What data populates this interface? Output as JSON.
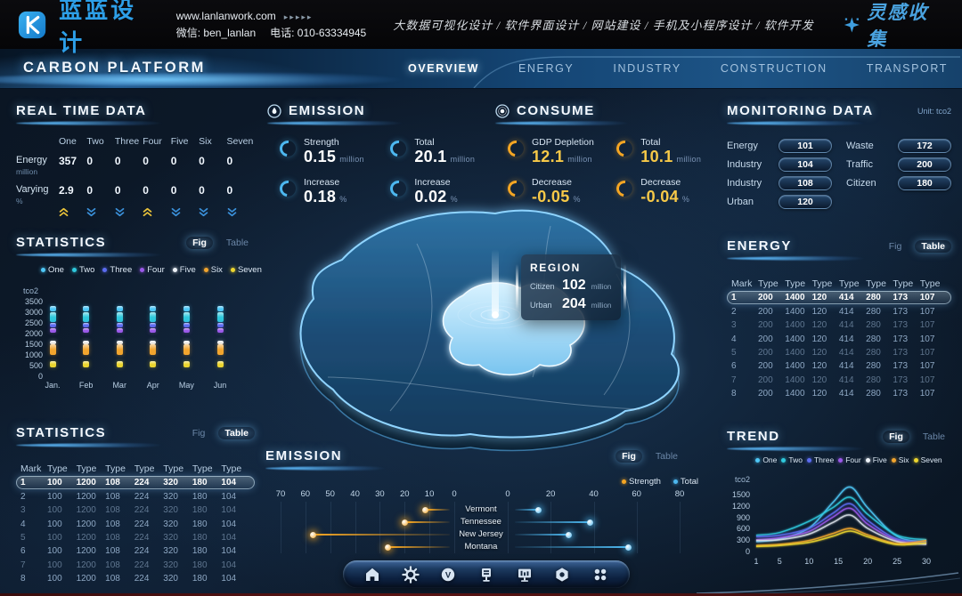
{
  "site_header": {
    "logo_text": "蓝蓝设计",
    "url": "www.lanlanwork.com",
    "url_arrows": "▸▸▸▸▸",
    "wechat": "微信: ben_lanlan",
    "phone": "电话: 010-63334945",
    "services": "大数据可视化设计 / 软件界面设计 / 网站建设 / 手机及小程序设计 / 软件开发",
    "collect": "灵感收集"
  },
  "navbar": {
    "title": "CARBON PLATFORM",
    "tabs": [
      {
        "label": "OVERVIEW",
        "active": true
      },
      {
        "label": "ENERGY",
        "active": false
      },
      {
        "label": "INDUSTRY",
        "active": false
      },
      {
        "label": "CONSTRUCTION",
        "active": false
      },
      {
        "label": "TRANSPORT",
        "active": false
      }
    ]
  },
  "realtime": {
    "title": "REAL TIME DATA",
    "columns": [
      "One",
      "Two",
      "Three",
      "Four",
      "Five",
      "Six",
      "Seven"
    ],
    "rows": [
      {
        "label": "Energy",
        "unit": "million",
        "values": [
          "357",
          "0",
          "0",
          "0",
          "0",
          "0",
          "0"
        ]
      },
      {
        "label": "Varying",
        "unit": "%",
        "values": [
          "2.9",
          "0",
          "0",
          "0",
          "0",
          "0",
          "0"
        ]
      }
    ],
    "trends": [
      "up",
      "down",
      "down",
      "up",
      "down",
      "down",
      "down"
    ]
  },
  "emission_stats": {
    "title": "EMISSION",
    "items": [
      {
        "label": "Strength",
        "value": "0.15",
        "unit": "million"
      },
      {
        "label": "Total",
        "value": "20.1",
        "unit": "million"
      },
      {
        "label": "Increase",
        "value": "0.18",
        "unit": "%"
      },
      {
        "label": "Increase",
        "value": "0.02",
        "unit": "%"
      }
    ]
  },
  "consume_stats": {
    "title": "CONSUME",
    "items": [
      {
        "label": "GDP Depletion",
        "value": "12.1",
        "unit": "million"
      },
      {
        "label": "Total",
        "value": "10.1",
        "unit": "million"
      },
      {
        "label": "Decrease",
        "value": "-0.05",
        "unit": "%"
      },
      {
        "label": "Decrease",
        "value": "-0.04",
        "unit": "%"
      }
    ]
  },
  "monitoring": {
    "title": "MONITORING DATA",
    "unit_label": "Unit: tco2",
    "left": [
      {
        "label": "Energy",
        "value": "101"
      },
      {
        "label": "Industry",
        "value": "104"
      },
      {
        "label": "Industry",
        "value": "108"
      },
      {
        "label": "Urban",
        "value": "120"
      }
    ],
    "right": [
      {
        "label": "Waste",
        "value": "172"
      },
      {
        "label": "Traffic",
        "value": "200"
      },
      {
        "label": "Citizen",
        "value": "180"
      }
    ]
  },
  "statistics_fig": {
    "title": "STATISTICS",
    "toggle": {
      "fig": "Fig",
      "table": "Table",
      "active": "fig"
    }
  },
  "statistics_table": {
    "title": "STATISTICS",
    "toggle": {
      "fig": "Fig",
      "table": "Table",
      "active": "table"
    },
    "headers": [
      "Mark",
      "Type",
      "Type",
      "Type",
      "Type",
      "Type",
      "Type",
      "Type"
    ],
    "rows": [
      [
        "1",
        "100",
        "1200",
        "108",
        "224",
        "320",
        "180",
        "104"
      ],
      [
        "2",
        "100",
        "1200",
        "108",
        "224",
        "320",
        "180",
        "104"
      ],
      [
        "3",
        "100",
        "1200",
        "108",
        "224",
        "320",
        "180",
        "104"
      ],
      [
        "4",
        "100",
        "1200",
        "108",
        "224",
        "320",
        "180",
        "104"
      ],
      [
        "5",
        "100",
        "1200",
        "108",
        "224",
        "320",
        "180",
        "104"
      ],
      [
        "6",
        "100",
        "1200",
        "108",
        "224",
        "320",
        "180",
        "104"
      ],
      [
        "7",
        "100",
        "1200",
        "108",
        "224",
        "320",
        "180",
        "104"
      ],
      [
        "8",
        "100",
        "1200",
        "108",
        "224",
        "320",
        "180",
        "104"
      ]
    ],
    "highlight_row": 0
  },
  "energy_table": {
    "title": "ENERGY",
    "toggle": {
      "fig": "Fig",
      "table": "Table",
      "active": "table"
    },
    "headers": [
      "Mark",
      "Type",
      "Type",
      "Type",
      "Type",
      "Type",
      "Type",
      "Type"
    ],
    "rows": [
      [
        "1",
        "200",
        "1400",
        "120",
        "414",
        "280",
        "173",
        "107"
      ],
      [
        "2",
        "200",
        "1400",
        "120",
        "414",
        "280",
        "173",
        "107"
      ],
      [
        "3",
        "200",
        "1400",
        "120",
        "414",
        "280",
        "173",
        "107"
      ],
      [
        "4",
        "200",
        "1400",
        "120",
        "414",
        "280",
        "173",
        "107"
      ],
      [
        "5",
        "200",
        "1400",
        "120",
        "414",
        "280",
        "173",
        "107"
      ],
      [
        "6",
        "200",
        "1400",
        "120",
        "414",
        "280",
        "173",
        "107"
      ],
      [
        "7",
        "200",
        "1400",
        "120",
        "414",
        "280",
        "173",
        "107"
      ],
      [
        "8",
        "200",
        "1400",
        "120",
        "414",
        "280",
        "173",
        "107"
      ]
    ],
    "highlight_row": 0
  },
  "emission_panel": {
    "title": "EMISSION",
    "toggle": {
      "fig": "Fig",
      "table": "Table",
      "active": "fig"
    }
  },
  "trend_panel": {
    "title": "TREND",
    "toggle": {
      "fig": "Fig",
      "table": "Table",
      "active": "fig"
    }
  },
  "region_tooltip": {
    "title": "REGION",
    "rows": [
      {
        "label": "Citizen",
        "value": "102",
        "unit": "million"
      },
      {
        "label": "Urban",
        "value": "204",
        "unit": "million"
      }
    ]
  },
  "series_legend": [
    {
      "name": "One",
      "color": "#4fc8f7"
    },
    {
      "name": "Two",
      "color": "#2fc9dd"
    },
    {
      "name": "Three",
      "color": "#5b6cf0"
    },
    {
      "name": "Four",
      "color": "#9a59e8"
    },
    {
      "name": "Five",
      "color": "#edf2f8"
    },
    {
      "name": "Six",
      "color": "#f2a52e"
    },
    {
      "name": "Seven",
      "color": "#ecd52f"
    }
  ],
  "toolbar": {
    "icons": [
      "home",
      "gear",
      "media",
      "kiosk",
      "dashboard",
      "nut",
      "apps"
    ]
  },
  "colors": {
    "accent_blue": "#4db8f0",
    "accent_gold": "#f5a623",
    "value_yellow": "#f7c948",
    "up": "#e8c23a",
    "down": "#3a8fd8"
  },
  "chart_data": [
    {
      "id": "statistics-monthly",
      "type": "bar",
      "stacked": true,
      "title": "STATISTICS",
      "ylabel": "tco2",
      "ylim": [
        0,
        3500
      ],
      "yticks": [
        0,
        500,
        1000,
        1500,
        2000,
        2500,
        3000,
        3500
      ],
      "categories": [
        "Jan.",
        "Feb",
        "Mar",
        "Apr",
        "May",
        "Jun"
      ],
      "months_identical": true,
      "series": [
        {
          "name": "One",
          "color": "#4fc8f7",
          "range": [
            3060,
            3300
          ]
        },
        {
          "name": "Two",
          "color": "#2fc9dd",
          "range": [
            2560,
            3000
          ]
        },
        {
          "name": "Three",
          "color": "#5b6cf0",
          "range": [
            2280,
            2520
          ]
        },
        {
          "name": "Four",
          "color": "#9a59e8",
          "range": [
            2030,
            2260
          ]
        },
        {
          "name": "Five",
          "color": "#edf2f8",
          "range": [
            1500,
            1670
          ]
        },
        {
          "name": "Six",
          "color": "#f2a52e",
          "range": [
            1000,
            1500
          ]
        },
        {
          "name": "Seven",
          "color": "#ecd52f",
          "range": [
            430,
            710
          ]
        }
      ]
    },
    {
      "id": "emission-by-state",
      "type": "bar",
      "orientation": "diverging-horizontal",
      "title": "EMISSION",
      "categories": [
        "Vermont",
        "Tennessee",
        "New Jersey",
        "Montana"
      ],
      "series": [
        {
          "name": "Strength",
          "color": "#f5a623",
          "axis": "left",
          "values": [
            12,
            20,
            57,
            27
          ]
        },
        {
          "name": "Total",
          "color": "#4db8f0",
          "axis": "right",
          "values": [
            14,
            38,
            28,
            56
          ]
        }
      ],
      "left_axis": {
        "ticks": [
          70,
          60,
          50,
          40,
          30,
          20,
          10,
          0
        ],
        "max": 70
      },
      "right_axis": {
        "ticks": [
          0,
          20,
          40,
          60,
          80
        ],
        "max": 80
      },
      "legend_position": "top-right"
    },
    {
      "id": "trend-lines",
      "type": "line",
      "title": "TREND",
      "ylabel": "tco2",
      "ylim": [
        0,
        1800
      ],
      "yticks": [
        0,
        300,
        600,
        900,
        1200,
        1500
      ],
      "xticks": [
        1,
        5,
        10,
        15,
        20,
        25,
        30
      ],
      "x": [
        1,
        5,
        10,
        14,
        17,
        20,
        25,
        30
      ],
      "series": [
        {
          "name": "One",
          "color": "#4fc8f7",
          "values": [
            260,
            330,
            620,
            1280,
            1700,
            1150,
            400,
            260
          ]
        },
        {
          "name": "Two",
          "color": "#2fc9dd",
          "values": [
            430,
            500,
            800,
            1150,
            1430,
            980,
            430,
            310
          ]
        },
        {
          "name": "Three",
          "color": "#5b6cf0",
          "values": [
            390,
            430,
            610,
            1000,
            1260,
            820,
            330,
            260
          ]
        },
        {
          "name": "Four",
          "color": "#9a59e8",
          "values": [
            310,
            360,
            530,
            900,
            1140,
            720,
            290,
            210
          ]
        },
        {
          "name": "Five",
          "color": "#d8dfe8",
          "values": [
            290,
            310,
            460,
            760,
            960,
            610,
            260,
            190
          ]
        },
        {
          "name": "Six",
          "color": "#f2a52e",
          "values": [
            160,
            190,
            290,
            470,
            610,
            440,
            210,
            290
          ]
        },
        {
          "name": "Seven",
          "color": "#ecd52f",
          "values": [
            130,
            160,
            240,
            400,
            540,
            390,
            180,
            230
          ]
        }
      ]
    }
  ]
}
